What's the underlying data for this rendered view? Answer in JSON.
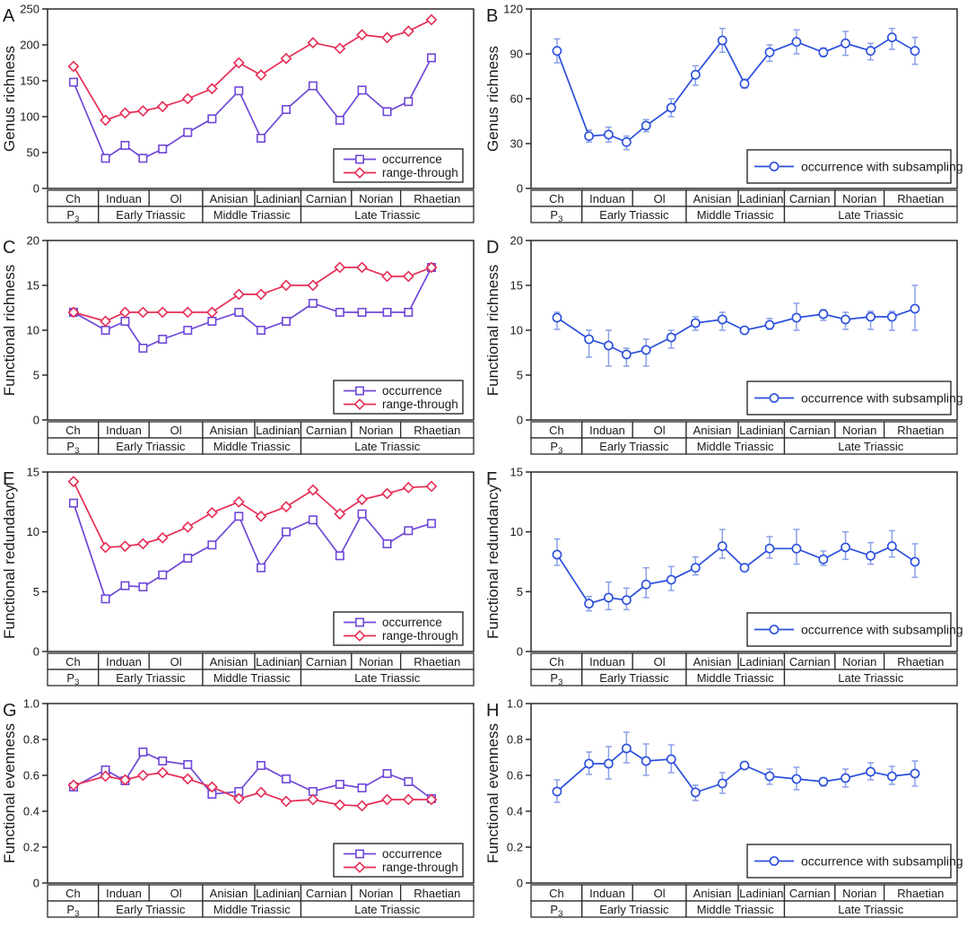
{
  "colors": {
    "occurrence": "#7048d8",
    "range_through": "#e62d55",
    "subsampled": "#2b4fdd",
    "error_bar": "#8aa0e8",
    "axis": "#2a2a2a",
    "text": "#1a1a1a",
    "background": "#ffffff"
  },
  "x_axis": {
    "point_fractions": [
      0.061,
      0.136,
      0.182,
      0.224,
      0.27,
      0.329,
      0.386,
      0.449,
      0.501,
      0.56,
      0.623,
      0.686,
      0.738,
      0.797,
      0.847,
      0.901
    ],
    "stages": [
      {
        "label": "Ch",
        "from": 0,
        "to": 0.1195
      },
      {
        "label": "Induan",
        "from": 0.1195,
        "to": 0.2384
      },
      {
        "label": "Ol",
        "from": 0.2384,
        "to": 0.3641
      },
      {
        "label": "Anisian",
        "from": 0.3641,
        "to": 0.4864
      },
      {
        "label": "Ladinian",
        "from": 0.4864,
        "to": 0.5947
      },
      {
        "label": "Carnian",
        "from": 0.5947,
        "to": 0.7134
      },
      {
        "label": "Norian",
        "from": 0.7134,
        "to": 0.8287
      },
      {
        "label": "Rhaetian",
        "from": 0.8287,
        "to": 1.0
      }
    ],
    "periods": [
      {
        "label": "P",
        "subscript": "3",
        "from": 0,
        "to": 0.1195
      },
      {
        "label": "Early Triassic",
        "subscript": "",
        "from": 0.1195,
        "to": 0.3641
      },
      {
        "label": "Middle Triassic",
        "subscript": "",
        "from": 0.3641,
        "to": 0.5947
      },
      {
        "label": "Late Triassic",
        "subscript": "",
        "from": 0.5947,
        "to": 1.0
      }
    ]
  },
  "chart_data": [
    {
      "letter": "A",
      "type": "line",
      "ylabel": "Genus richness",
      "ylim": [
        0,
        250
      ],
      "yticks": [
        "0",
        "50",
        "100",
        "150",
        "200",
        "250"
      ],
      "x_categories": [
        "Ch",
        "Induan",
        "Ol",
        "Anisian",
        "Ladinian",
        "Carnian",
        "Norian",
        "Rhaetian"
      ],
      "x_periods": [
        "P3",
        "Early Triassic",
        "Middle Triassic",
        "Late Triassic"
      ],
      "legend_position": "lower right",
      "series": [
        {
          "name": "occurrence",
          "marker": "square",
          "color": "#7048d8",
          "values": [
            148,
            42,
            60,
            42,
            55,
            78,
            97,
            136,
            70,
            110,
            143,
            95,
            137,
            107,
            121,
            182
          ]
        },
        {
          "name": "range-through",
          "marker": "diamond",
          "color": "#e62d55",
          "values": [
            170,
            95,
            105,
            108,
            114,
            125,
            139,
            175,
            158,
            181,
            203,
            195,
            214,
            210,
            219,
            235
          ]
        }
      ]
    },
    {
      "letter": "B",
      "type": "line",
      "ylabel": "Genus richness",
      "ylim": [
        0,
        120
      ],
      "yticks": [
        "0",
        "30",
        "60",
        "90",
        "120"
      ],
      "x_categories": [
        "Ch",
        "Induan",
        "Ol",
        "Anisian",
        "Ladinian",
        "Carnian",
        "Norian",
        "Rhaetian"
      ],
      "x_periods": [
        "P3",
        "Early Triassic",
        "Middle Triassic",
        "Late Triassic"
      ],
      "legend_position": "lower right",
      "series": [
        {
          "name": "occurrence with subsampling",
          "marker": "circle",
          "color": "#2b4fdd",
          "error_color": "#8aa0e8",
          "values": [
            92,
            35,
            36,
            31,
            42,
            54,
            76,
            99,
            70,
            91,
            98,
            91,
            97,
            92,
            101,
            92
          ],
          "err_lo": [
            84,
            31,
            31,
            26,
            38,
            48,
            69,
            91,
            67,
            85,
            90,
            88,
            89,
            86,
            93,
            83
          ],
          "err_hi": [
            100,
            39,
            41,
            35,
            46,
            60,
            82,
            107,
            73,
            96,
            106,
            94,
            105,
            97,
            107,
            101
          ]
        }
      ]
    },
    {
      "letter": "C",
      "type": "line",
      "ylabel": "Functional richness",
      "ylim": [
        0,
        20
      ],
      "yticks": [
        "0",
        "5",
        "10",
        "15",
        "20"
      ],
      "x_categories": [
        "Ch",
        "Induan",
        "Ol",
        "Anisian",
        "Ladinian",
        "Carnian",
        "Norian",
        "Rhaetian"
      ],
      "x_periods": [
        "P3",
        "Early Triassic",
        "Middle Triassic",
        "Late Triassic"
      ],
      "legend_position": "lower right",
      "series": [
        {
          "name": "occurrence",
          "marker": "square",
          "color": "#7048d8",
          "values": [
            12,
            10,
            11,
            8,
            9,
            10,
            11,
            12,
            10,
            11,
            13,
            12,
            12,
            12,
            12,
            17
          ]
        },
        {
          "name": "range-through",
          "marker": "diamond",
          "color": "#e62d55",
          "values": [
            12,
            11,
            12,
            12,
            12,
            12,
            12,
            14,
            14,
            15,
            15,
            17,
            17,
            16,
            16,
            17
          ]
        }
      ]
    },
    {
      "letter": "D",
      "type": "line",
      "ylabel": "Functional richness",
      "ylim": [
        0,
        20
      ],
      "yticks": [
        "0",
        "5",
        "10",
        "15",
        "20"
      ],
      "x_categories": [
        "Ch",
        "Induan",
        "Ol",
        "Anisian",
        "Ladinian",
        "Carnian",
        "Norian",
        "Rhaetian"
      ],
      "x_periods": [
        "P3",
        "Early Triassic",
        "Middle Triassic",
        "Late Triassic"
      ],
      "legend_position": "lower right",
      "series": [
        {
          "name": "occurrence with subsampling",
          "marker": "circle",
          "color": "#2b4fdd",
          "error_color": "#8aa0e8",
          "values": [
            11.4,
            9.0,
            8.3,
            7.3,
            7.8,
            9.2,
            10.8,
            11.2,
            10.0,
            10.6,
            11.4,
            11.8,
            11.2,
            11.5,
            11.5,
            12.4
          ],
          "err_lo": [
            10.1,
            7.0,
            6.0,
            6.0,
            6.0,
            8.0,
            10.0,
            10.0,
            9.7,
            10.1,
            10.0,
            11.1,
            10.1,
            10.1,
            10.0,
            10.0
          ],
          "err_hi": [
            12.0,
            10.0,
            10.0,
            8.0,
            9.0,
            10.0,
            11.5,
            12.0,
            10.3,
            11.3,
            13.0,
            12.3,
            12.0,
            12.1,
            12.1,
            15.0
          ]
        }
      ]
    },
    {
      "letter": "E",
      "type": "line",
      "ylabel": "Functional redundancy",
      "ylim": [
        0,
        15
      ],
      "yticks": [
        "0",
        "5",
        "10",
        "15"
      ],
      "x_categories": [
        "Ch",
        "Induan",
        "Ol",
        "Anisian",
        "Ladinian",
        "Carnian",
        "Norian",
        "Rhaetian"
      ],
      "x_periods": [
        "P3",
        "Early Triassic",
        "Middle Triassic",
        "Late Triassic"
      ],
      "legend_position": "lower right",
      "series": [
        {
          "name": "occurrence",
          "marker": "square",
          "color": "#7048d8",
          "values": [
            12.4,
            4.4,
            5.5,
            5.4,
            6.4,
            7.8,
            8.9,
            11.3,
            7.0,
            10.0,
            11.0,
            8.0,
            11.5,
            9.0,
            10.1,
            10.7
          ]
        },
        {
          "name": "range-through",
          "marker": "diamond",
          "color": "#e62d55",
          "values": [
            14.2,
            8.7,
            8.8,
            9.0,
            9.5,
            10.4,
            11.6,
            12.5,
            11.3,
            12.1,
            13.5,
            11.5,
            12.7,
            13.2,
            13.7,
            13.8
          ]
        }
      ]
    },
    {
      "letter": "F",
      "type": "line",
      "ylabel": "Functional redundancy",
      "ylim": [
        0,
        15
      ],
      "yticks": [
        "0",
        "5",
        "10",
        "15"
      ],
      "x_categories": [
        "Ch",
        "Induan",
        "Ol",
        "Anisian",
        "Ladinian",
        "Carnian",
        "Norian",
        "Rhaetian"
      ],
      "x_periods": [
        "P3",
        "Early Triassic",
        "Middle Triassic",
        "Late Triassic"
      ],
      "legend_position": "lower right",
      "series": [
        {
          "name": "occurrence with subsampling",
          "marker": "circle",
          "color": "#2b4fdd",
          "error_color": "#8aa0e8",
          "values": [
            8.1,
            4.0,
            4.5,
            4.3,
            5.6,
            6.0,
            7.0,
            8.8,
            7.0,
            8.6,
            8.6,
            7.7,
            8.7,
            8.0,
            8.8,
            7.5
          ],
          "err_lo": [
            7.2,
            3.4,
            3.5,
            3.5,
            4.5,
            5.1,
            6.4,
            7.8,
            6.8,
            7.8,
            7.3,
            7.2,
            7.7,
            7.3,
            7.9,
            6.2
          ],
          "err_hi": [
            9.4,
            4.6,
            5.8,
            5.3,
            7.0,
            7.1,
            7.9,
            10.2,
            7.2,
            9.6,
            10.2,
            8.4,
            10.0,
            9.1,
            10.1,
            9.0
          ]
        }
      ]
    },
    {
      "letter": "G",
      "type": "line",
      "ylabel": "Functional evenness",
      "ylim": [
        0,
        1.0
      ],
      "yticks": [
        "0",
        "0.2",
        "0.4",
        "0.6",
        "0.8",
        "1.0"
      ],
      "x_categories": [
        "Ch",
        "Induan",
        "Ol",
        "Anisian",
        "Ladinian",
        "Carnian",
        "Norian",
        "Rhaetian"
      ],
      "x_periods": [
        "P3",
        "Early Triassic",
        "Middle Triassic",
        "Late Triassic"
      ],
      "legend_position": "lower right",
      "series": [
        {
          "name": "occurrence",
          "marker": "square",
          "color": "#7048d8",
          "values": [
            0.535,
            0.63,
            0.57,
            0.73,
            0.68,
            0.66,
            0.495,
            0.51,
            0.655,
            0.58,
            0.51,
            0.55,
            0.53,
            0.61,
            0.565,
            0.47
          ]
        },
        {
          "name": "range-through",
          "marker": "diamond",
          "color": "#e62d55",
          "values": [
            0.545,
            0.595,
            0.575,
            0.6,
            0.615,
            0.58,
            0.535,
            0.47,
            0.505,
            0.455,
            0.465,
            0.435,
            0.43,
            0.465,
            0.465,
            0.465
          ]
        }
      ]
    },
    {
      "letter": "H",
      "type": "line",
      "ylabel": "Functional evenness",
      "ylim": [
        0,
        1.0
      ],
      "yticks": [
        "0",
        "0.2",
        "0.4",
        "0.6",
        "0.8",
        "1.0"
      ],
      "x_categories": [
        "Ch",
        "Induan",
        "Ol",
        "Anisian",
        "Ladinian",
        "Carnian",
        "Norian",
        "Rhaetian"
      ],
      "x_periods": [
        "P3",
        "Early Triassic",
        "Middle Triassic",
        "Late Triassic"
      ],
      "legend_position": "lower right",
      "series": [
        {
          "name": "occurrence with subsampling",
          "marker": "circle",
          "color": "#2b4fdd",
          "error_color": "#8aa0e8",
          "values": [
            0.51,
            0.665,
            0.665,
            0.75,
            0.68,
            0.69,
            0.505,
            0.555,
            0.655,
            0.595,
            0.58,
            0.565,
            0.585,
            0.62,
            0.595,
            0.61
          ],
          "err_lo": [
            0.45,
            0.605,
            0.58,
            0.67,
            0.6,
            0.615,
            0.46,
            0.5,
            0.64,
            0.55,
            0.52,
            0.54,
            0.535,
            0.575,
            0.55,
            0.54
          ],
          "err_hi": [
            0.575,
            0.73,
            0.76,
            0.84,
            0.775,
            0.77,
            0.545,
            0.615,
            0.67,
            0.635,
            0.645,
            0.585,
            0.635,
            0.67,
            0.65,
            0.68
          ]
        }
      ]
    }
  ]
}
